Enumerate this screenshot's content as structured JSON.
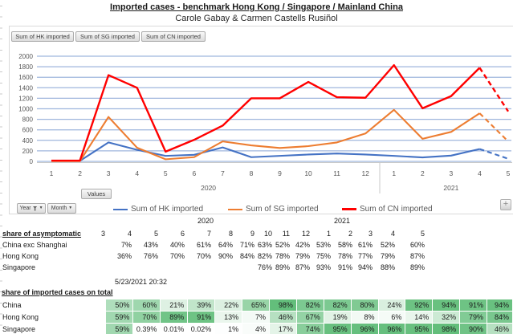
{
  "page": {
    "title": "Imported cases - benchmark Hong Kong / Singapore / Mainland China",
    "subtitle": "Carole Gabay & Carmen Castells Rusiñol"
  },
  "chart": {
    "field_buttons": [
      "Sum of HK imported",
      "Sum of SG imported",
      "Sum of CN imported"
    ],
    "values_button": "Values",
    "year_button": "Year",
    "month_button": "Month",
    "add_button": "+",
    "gridline_color": "#9fb6dd",
    "axis_text_color": "#595959",
    "y_ticks": [
      0,
      200,
      400,
      600,
      800,
      1000,
      1200,
      1400,
      1600,
      1800,
      2000
    ],
    "y_max": 2000,
    "months_2020": [
      "1",
      "2",
      "3",
      "4",
      "5",
      "6",
      "7",
      "8",
      "9",
      "10",
      "11",
      "12"
    ],
    "months_2021": [
      "1",
      "2",
      "3",
      "4",
      "5"
    ],
    "year_labels": [
      "2020",
      "2021"
    ],
    "dashed_last_segment": true,
    "series": [
      {
        "name": "Sum of HK imported",
        "color": "#4472c4",
        "values": [
          10,
          10,
          360,
          220,
          105,
          125,
          265,
          80,
          105,
          130,
          150,
          130,
          105,
          75,
          110,
          235,
          50
        ]
      },
      {
        "name": "Sum of SG imported",
        "color": "#ed7d31",
        "values": [
          5,
          5,
          845,
          260,
          40,
          80,
          380,
          305,
          255,
          290,
          360,
          530,
          980,
          430,
          560,
          915,
          380
        ]
      },
      {
        "name": "Sum of CN imported",
        "color": "#ff0000",
        "values": [
          15,
          15,
          1640,
          1400,
          185,
          410,
          680,
          1200,
          1200,
          1510,
          1220,
          1210,
          1830,
          1010,
          1240,
          1780,
          950
        ]
      }
    ]
  },
  "asymptomatic_table": {
    "title": "share of asymptomatic",
    "year_labels": [
      "2020",
      "2021"
    ],
    "months": [
      "3",
      "4",
      "5",
      "6",
      "7",
      "8",
      "9",
      "10",
      "11",
      "12",
      "1",
      "2",
      "3",
      "4",
      "5"
    ],
    "rows": [
      {
        "label": "China exc Shanghai",
        "values": [
          null,
          7,
          43,
          40,
          61,
          64,
          71,
          63,
          52,
          42,
          53,
          58,
          61,
          52,
          60
        ]
      },
      {
        "label": "Hong Kong",
        "values": [
          null,
          36,
          76,
          70,
          70,
          90,
          84,
          82,
          78,
          79,
          75,
          78,
          77,
          79,
          87
        ]
      },
      {
        "label": "Singapore",
        "values": [
          null,
          null,
          null,
          null,
          null,
          null,
          null,
          76,
          89,
          87,
          93,
          91,
          94,
          88,
          89
        ]
      }
    ]
  },
  "timestamp": "5/23/2021 20:32",
  "imported_table": {
    "title": "share of imported cases on total",
    "scale_max_color": "#63be7b",
    "rows": [
      {
        "label": "China",
        "values": [
          50,
          60,
          21,
          39,
          22,
          65,
          98,
          82,
          82,
          80,
          24,
          92,
          94,
          91,
          94
        ]
      },
      {
        "label": "Hong Kong",
        "values": [
          59,
          70,
          89,
          91,
          13,
          7,
          46,
          67,
          19,
          8,
          6,
          14,
          32,
          79,
          84
        ]
      },
      {
        "label": "Singapore",
        "values": [
          59,
          0.39,
          0.01,
          0.02,
          1,
          4,
          17,
          74,
          95,
          96,
          96,
          95,
          98,
          90,
          46
        ]
      }
    ]
  }
}
